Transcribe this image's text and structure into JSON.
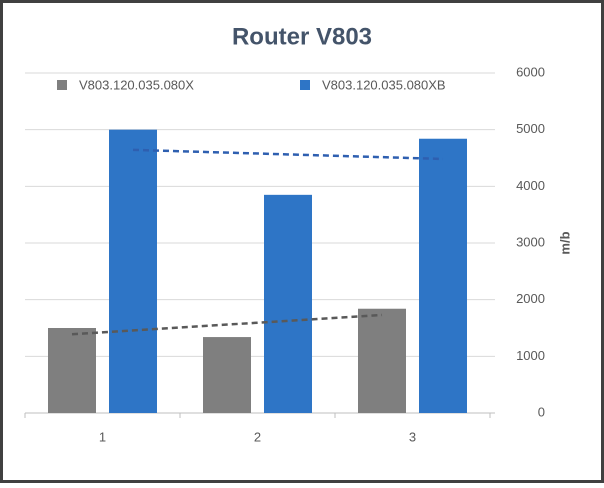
{
  "chart_data": {
    "type": "bar",
    "title": "Router V803",
    "y_axis_label": "m/b",
    "categories": [
      "1",
      "2",
      "3"
    ],
    "series": [
      {
        "name": "V803.120.035.080X",
        "color": "#7f7f7f",
        "values": [
          1500,
          1340,
          1840
        ]
      },
      {
        "name": "V803.120.035.080XB",
        "color": "#2e75c6",
        "values": [
          5000,
          3850,
          4840
        ]
      }
    ],
    "ylim": [
      0,
      6000
    ],
    "yticks": [
      0,
      1000,
      2000,
      3000,
      4000,
      5000,
      6000
    ],
    "grid": true,
    "linear_trendline": true,
    "y_axis_side": "right",
    "legend": "top"
  }
}
